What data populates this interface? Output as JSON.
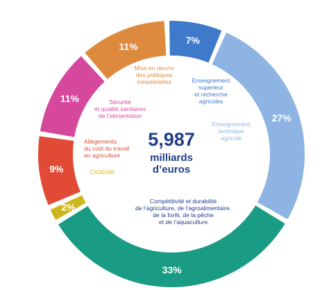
{
  "chart_data": {
    "type": "donut",
    "center": {
      "value": "5,987",
      "unit_line1": "milliards",
      "unit_line2": "d’euros"
    },
    "segments": [
      {
        "id": "enseignement-superieur",
        "label_lines": [
          "Enseignement",
          "superieur",
          "et recherche",
          "agricoles"
        ],
        "value": 7,
        "display": "7%",
        "color": "#3f79c9",
        "label_color": "#3f79c9"
      },
      {
        "id": "enseignement-technique",
        "label_lines": [
          "Enseignement",
          "technique",
          "agricole"
        ],
        "value": 27,
        "display": "27%",
        "color": "#8db4e3",
        "label_color": "#8db4e3"
      },
      {
        "id": "competitivite",
        "label_lines": [
          "Compétitivité et durabilité",
          "de l’agriculture, de l’agroalimentaire,",
          "de la forêt, de la pêche",
          "et de l’aquaculture"
        ],
        "value": 33,
        "display": "33%",
        "color": "#1a9b84",
        "label_color": "#1f3d8a"
      },
      {
        "id": "casdar",
        "label_lines": [
          "CASDAR"
        ],
        "value": 2,
        "display": "2%",
        "color": "#cdb71c",
        "label_color": "#cdb71c"
      },
      {
        "id": "allegements",
        "label_lines": [
          "Allègements",
          "du coût du travail",
          "en agriculture"
        ],
        "value": 9,
        "display": "9%",
        "color": "#e14b36",
        "label_color": "#e14b36"
      },
      {
        "id": "securite-sanitaire",
        "label_lines": [
          "Sécurité",
          "et qualité sanitaires",
          "de l’alimentation"
        ],
        "value": 11,
        "display": "11%",
        "color": "#d5489b",
        "label_color": "#d5489b"
      },
      {
        "id": "mise-en-oeuvre",
        "label_lines": [
          "Mise en œuvre",
          "des politiques",
          "ministérielles"
        ],
        "value": 11,
        "display": "11%",
        "color": "#dd8a3e",
        "label_color": "#dd8a3e"
      }
    ]
  }
}
